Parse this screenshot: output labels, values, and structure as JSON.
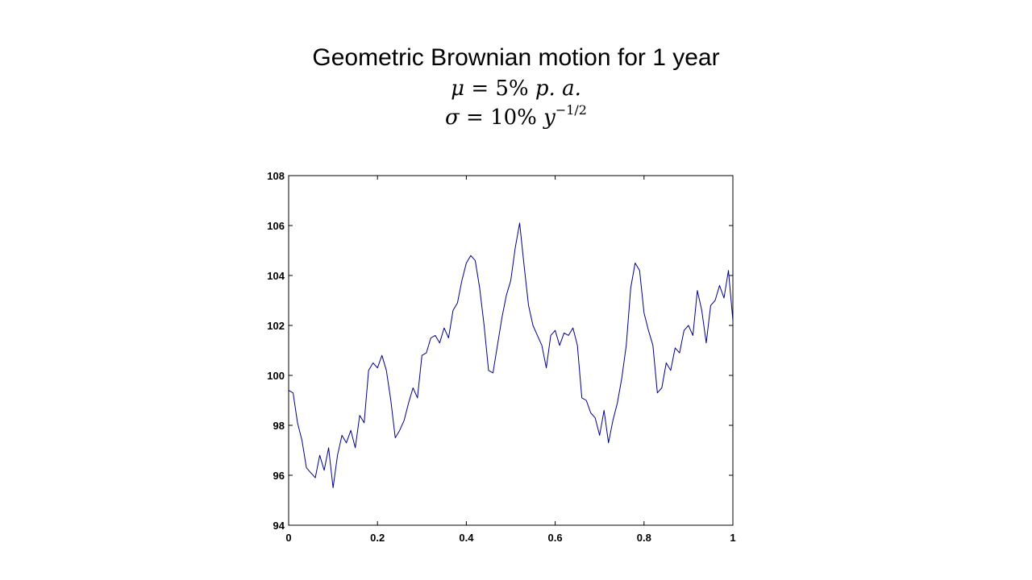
{
  "title": {
    "line1": "Geometric Brownian motion for 1 year",
    "mu_symbol": "μ",
    "mu_expr": " = 5% ",
    "mu_unit": "p. a.",
    "sigma_symbol": "σ",
    "sigma_expr": " = 10% ",
    "sigma_unit": "y",
    "sigma_exponent": "−1/2"
  },
  "colors": {
    "line": "#00008b",
    "axis": "#000000",
    "background": "#ffffff"
  },
  "chart_data": {
    "type": "line",
    "title": "Geometric Brownian motion for 1 year",
    "xlabel": "",
    "ylabel": "",
    "xlim": [
      0,
      1
    ],
    "ylim": [
      94,
      108
    ],
    "x_ticks": [
      0,
      0.2,
      0.4,
      0.6,
      0.8,
      1
    ],
    "x_tick_labels": [
      "0",
      "0.2",
      "0.4",
      "0.6",
      "0.8",
      "1"
    ],
    "y_ticks": [
      94,
      96,
      98,
      100,
      102,
      104,
      106,
      108
    ],
    "y_tick_labels": [
      "94",
      "96",
      "98",
      "100",
      "102",
      "104",
      "106",
      "108"
    ],
    "grid": false,
    "legend": "none",
    "series": [
      {
        "x": [
          0,
          0.01,
          0.02,
          0.03,
          0.04,
          0.05,
          0.06,
          0.07,
          0.08,
          0.09,
          0.1,
          0.11,
          0.12,
          0.13,
          0.14,
          0.15,
          0.16,
          0.17,
          0.18,
          0.19,
          0.2,
          0.21,
          0.22,
          0.23,
          0.24,
          0.25,
          0.26,
          0.27,
          0.28,
          0.29,
          0.3,
          0.31,
          0.32,
          0.33,
          0.34,
          0.35,
          0.36,
          0.37,
          0.38,
          0.39,
          0.4,
          0.41,
          0.42,
          0.43,
          0.44,
          0.45,
          0.46,
          0.47,
          0.48,
          0.49,
          0.5,
          0.51,
          0.52,
          0.53,
          0.54,
          0.55,
          0.56,
          0.57,
          0.58,
          0.59,
          0.6,
          0.61,
          0.62,
          0.63,
          0.64,
          0.65,
          0.66,
          0.67,
          0.68,
          0.69,
          0.7,
          0.71,
          0.72,
          0.73,
          0.74,
          0.75,
          0.76,
          0.77,
          0.78,
          0.79,
          0.8,
          0.81,
          0.82,
          0.83,
          0.84,
          0.85,
          0.86,
          0.87,
          0.88,
          0.89,
          0.9,
          0.91,
          0.92,
          0.93,
          0.94,
          0.95,
          0.96,
          0.97,
          0.98,
          0.99,
          1
        ],
        "values": [
          99.4,
          99.3,
          98.1,
          97.4,
          96.3,
          96.1,
          95.9,
          96.8,
          96.2,
          97.1,
          95.5,
          96.8,
          97.6,
          97.3,
          97.8,
          97.1,
          98.4,
          98.1,
          100.2,
          100.5,
          100.3,
          100.8,
          100.2,
          99.0,
          97.5,
          97.8,
          98.2,
          98.9,
          99.5,
          99.1,
          100.8,
          100.9,
          101.5,
          101.6,
          101.3,
          101.9,
          101.5,
          102.6,
          102.9,
          103.8,
          104.5,
          104.8,
          104.6,
          103.5,
          102.0,
          100.2,
          100.1,
          101.2,
          102.3,
          103.2,
          103.8,
          105.1,
          106.1,
          104.4,
          102.8,
          102.0,
          101.6,
          101.2,
          100.3,
          101.6,
          101.8,
          101.2,
          101.7,
          101.6,
          101.9,
          101.2,
          99.1,
          99.0,
          98.5,
          98.3,
          97.6,
          98.6,
          97.3,
          98.2,
          98.9,
          99.9,
          101.2,
          103.5,
          104.5,
          104.2,
          102.5,
          101.8,
          101.2,
          99.3,
          99.5,
          100.5,
          100.2,
          101.1,
          100.9,
          101.8,
          102.0,
          101.6,
          103.4,
          102.6,
          101.3,
          102.8,
          103.0,
          103.6,
          103.1,
          104.2,
          102.2
        ]
      }
    ]
  }
}
